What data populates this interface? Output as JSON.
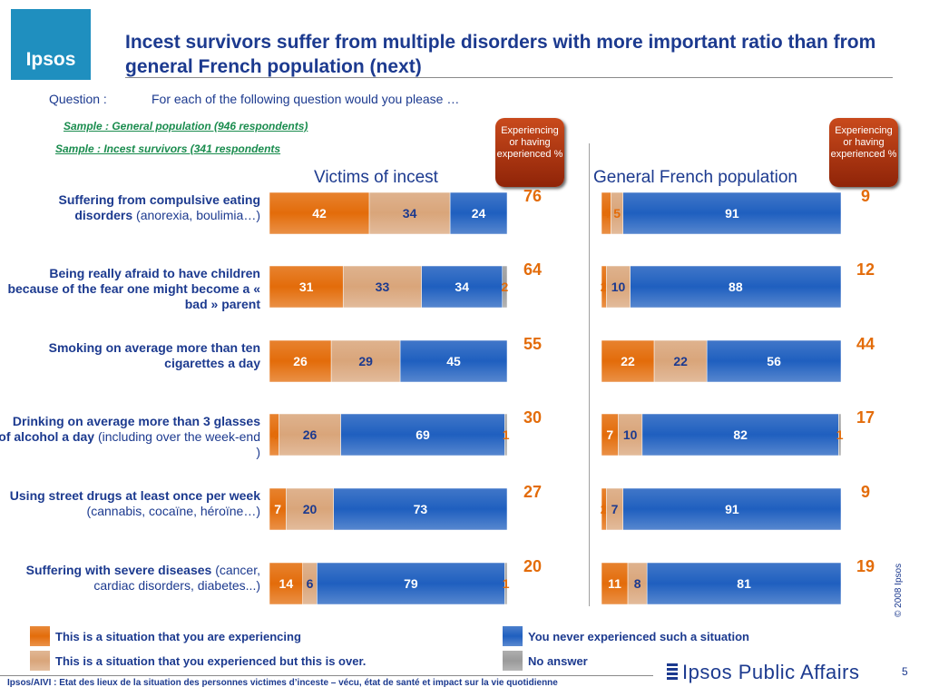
{
  "header": {
    "logo_text": "Ipsos",
    "title": "Incest survivors suffer from multiple disorders with more important ratio than from general French population (next)",
    "question_label": "Question :",
    "question_text": "For each of the following question would you please …",
    "sample_1": "Sample : General population (946 respondents)",
    "sample_2": "Sample : Incest  survivors (341 respondents",
    "badge_left": "Experiencing or having experienced %",
    "badge_right": "Experiencing or having experienced %"
  },
  "colors": {
    "currently": "#e36c0a",
    "past": "#d9a57a",
    "never": "#1f5fbf",
    "no_answer": "#9a9a9a"
  },
  "chart_data": {
    "type": "bar",
    "orientation": "horizontal",
    "stacked": true,
    "xlim": [
      0,
      100
    ],
    "panels": [
      "Victims of incest",
      "General French population"
    ],
    "legend": [
      {
        "key": "currently",
        "label": "This is a situation that you are experiencing"
      },
      {
        "key": "past",
        "label": "This is a situation that you experienced but this is over."
      },
      {
        "key": "never",
        "label": "You never experienced such a situation"
      },
      {
        "key": "no_answer",
        "label": "No answer"
      }
    ],
    "rows": [
      {
        "label_bold": "Suffering from compulsive eating disorders",
        "label_normal": "(anorexia, boulimia…)",
        "victims": {
          "currently": 42,
          "past": 34,
          "never": 24,
          "no_answer": 0,
          "total": 76
        },
        "general": {
          "currently": 4,
          "past": 5,
          "never": 91,
          "no_answer": 0,
          "total": 9
        }
      },
      {
        "label_bold": "Being really afraid to have children because of  the fear one might become a «  bad » parent",
        "label_normal": "",
        "victims": {
          "currently": 31,
          "past": 33,
          "never": 34,
          "no_answer": 2,
          "total": 64
        },
        "general": {
          "currently": 2,
          "past": 10,
          "never": 88,
          "no_answer": 0,
          "total": 12
        }
      },
      {
        "label_bold": "Smoking on average more than ten cigarettes a day",
        "label_normal": "",
        "victims": {
          "currently": 26,
          "past": 29,
          "never": 45,
          "no_answer": 0,
          "total": 55
        },
        "general": {
          "currently": 22,
          "past": 22,
          "never": 56,
          "no_answer": 0,
          "total": 44
        }
      },
      {
        "label_bold": "Drinking on average more than 3 glasses of alcohol a day",
        "label_normal": "(including over the week-end )",
        "victims": {
          "currently": 4,
          "past": 26,
          "never": 69,
          "no_answer": 1,
          "total": 30
        },
        "general": {
          "currently": 7,
          "past": 10,
          "never": 82,
          "no_answer": 1,
          "total": 17
        }
      },
      {
        "label_bold": "Using street drugs at least once per week",
        "label_normal": "(cannabis, cocaïne, héroïne…)",
        "victims": {
          "currently": 7,
          "past": 20,
          "never": 73,
          "no_answer": 0,
          "total": 27
        },
        "general": {
          "currently": 2,
          "past": 7,
          "never": 91,
          "no_answer": 0,
          "total": 9
        }
      },
      {
        "label_bold": "Suffering with severe diseases",
        "label_normal": "(cancer, cardiac disorders, diabetes...)",
        "victims": {
          "currently": 14,
          "past": 6,
          "never": 79,
          "no_answer": 1,
          "total": 20
        },
        "general": {
          "currently": 11,
          "past": 8,
          "never": 81,
          "no_answer": 0,
          "total": 19
        }
      }
    ]
  },
  "footer": {
    "copyright": "© 2008 Ipsos",
    "source": "Ipsos/AIVI : Etat des lieux de la situation des personnes victimes d’inceste – vécu, état de santé et impact sur la vie quotidienne",
    "brand": "Ipsos Public Affairs",
    "page_number": "5"
  }
}
